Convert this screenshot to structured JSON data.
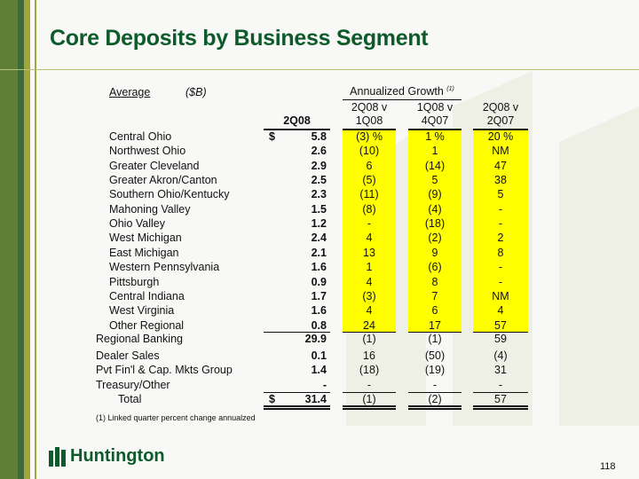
{
  "title": "Core Deposits by Business Segment",
  "header": {
    "average": "Average",
    "units": "($B)",
    "growth": "Annualized Growth",
    "growth_note": "(1)",
    "col0": "2Q08",
    "col1a": "2Q08 v",
    "col1b": "1Q08",
    "col2a": "1Q08 v",
    "col2b": "4Q07",
    "col3a": "2Q08 v",
    "col3b": "2Q07"
  },
  "rows": [
    {
      "label": "Central Ohio",
      "dollar": "$",
      "v": "5.8",
      "g1": "(3)  %",
      "g2": "1   %",
      "g3": "20   %"
    },
    {
      "label": "Northwest Ohio",
      "v": "2.6",
      "g1": "(10)",
      "g2": "1",
      "g3": "NM"
    },
    {
      "label": "Greater Cleveland",
      "v": "2.9",
      "g1": "6",
      "g2": "(14)",
      "g3": "47"
    },
    {
      "label": "Greater Akron/Canton",
      "v": "2.5",
      "g1": "(5)",
      "g2": "5",
      "g3": "38"
    },
    {
      "label": "Southern Ohio/Kentucky",
      "v": "2.3",
      "g1": "(11)",
      "g2": "(9)",
      "g3": "5"
    },
    {
      "label": "Mahoning Valley",
      "v": "1.5",
      "g1": "(8)",
      "g2": "(4)",
      "g3": "-"
    },
    {
      "label": "Ohio Valley",
      "v": "1.2",
      "g1": "-",
      "g2": "(18)",
      "g3": "-"
    },
    {
      "label": "West Michigan",
      "v": "2.4",
      "g1": "4",
      "g2": "(2)",
      "g3": "2"
    },
    {
      "label": "East Michigan",
      "v": "2.1",
      "g1": "13",
      "g2": "9",
      "g3": "8"
    },
    {
      "label": "Western Pennsylvania",
      "v": "1.6",
      "g1": "1",
      "g2": "(6)",
      "g3": "-"
    },
    {
      "label": "Pittsburgh",
      "v": "0.9",
      "g1": "4",
      "g2": "8",
      "g3": "-"
    },
    {
      "label": "Central Indiana",
      "v": "1.7",
      "g1": "(3)",
      "g2": "7",
      "g3": "NM"
    },
    {
      "label": "West Virginia",
      "v": "1.6",
      "g1": "4",
      "g2": "6",
      "g3": "4"
    },
    {
      "label": "Other Regional",
      "v": "0.8",
      "g1": "24",
      "g2": "17",
      "g3": "57"
    }
  ],
  "summary": [
    {
      "label": "Regional Banking",
      "v": "29.9",
      "g1": "(1)",
      "g2": "(1)",
      "g3": "59"
    },
    {
      "label": "Dealer Sales",
      "v": "0.1",
      "g1": "16",
      "g2": "(50)",
      "g3": "(4)"
    },
    {
      "label": "Pvt Fin'l & Cap. Mkts Group",
      "v": "1.4",
      "g1": "(18)",
      "g2": "(19)",
      "g3": "31"
    },
    {
      "label": "Treasury/Other",
      "v": "-",
      "g1": "-",
      "g2": "-",
      "g3": "-"
    },
    {
      "label": "Total",
      "dollar": "$",
      "v": "31.4",
      "g1": "(1)",
      "g2": "(2)",
      "g3": "57"
    }
  ],
  "footnote": "(1)  Linked quarter percent change annualzed",
  "logo": "Huntington",
  "page": "118"
}
